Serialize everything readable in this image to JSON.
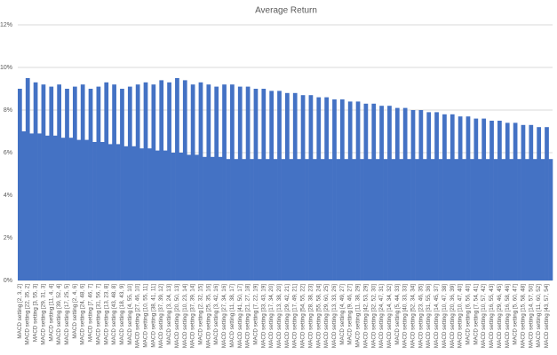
{
  "chart_data": {
    "type": "bar",
    "title": "Average Return",
    "categories": [
      "MACD setting [2, 3, 2]",
      null,
      "MACD setting [22, 35, 2]",
      null,
      "MACD setting [3, 55, 3]",
      null,
      "MACD setting [29, 31, 3]",
      null,
      "MACD setting [11, 4, 4]",
      null,
      "MACD setting [39, 52, 4]",
      null,
      "MACD setting [17, 25, 5]",
      null,
      "MACD setting [2, 4, 6]",
      null,
      "MACD setting [24, 48, 6]",
      null,
      "MACD setting [7, 46, 7]",
      null,
      "MACD setting [31, 56, 7]",
      null,
      "MACD setting [13, 23, 8]",
      null,
      "MACD setting [43, 48, 8]",
      null,
      "MACD setting [18, 43, 9]",
      null,
      "MACD setting [4, 55, 10]",
      null,
      "MACD setting [27, 46, 10]",
      null,
      "MACD setting [10, 55, 11]",
      null,
      "MACD setting [38, 41, 11]",
      null,
      "MACD setting [37, 39, 12]",
      null,
      "MACD setting [3, 24, 13]",
      null,
      "MACD setting [20, 50, 13]",
      null,
      "MACD setting [10, 23, 14]",
      null,
      "MACD setting [37, 39, 14]",
      null,
      "MACD setting [2, 32, 15]",
      null,
      "MACD setting [25, 35, 16]",
      null,
      "MACD setting [3, 42, 16]",
      null,
      "MACD setting [27, 34, 16]",
      null,
      "MACD setting [11, 38, 17]",
      null,
      "MACD setting [41, 50, 17]",
      null,
      "MACD setting [21, 27, 18]",
      null,
      "MACD setting [7, 22, 19]",
      null,
      "MACD setting [33, 43, 19]",
      null,
      "MACD setting [17, 34, 20]",
      null,
      "MACD setting [13, 38, 20]",
      null,
      "MACD setting [29, 42, 21]",
      null,
      "MACD setting [17, 49, 21]",
      null,
      "MACD setting [54, 55, 22]",
      null,
      "MACD setting [28, 38, 23]",
      null,
      "MACD setting [55, 58, 24]",
      null,
      "MACD setting [29, 60, 25]",
      null,
      "MACD setting [13, 33, 26]",
      null,
      "MACD setting [4, 49, 27]",
      null,
      "MACD setting [9, 46, 27]",
      null,
      "MACD setting [11, 38, 29]",
      null,
      "MACD setting [42, 53, 29]",
      null,
      "MACD setting [32, 52, 30]",
      null,
      "MACD setting [24, 47, 31]",
      null,
      "MACD setting [14, 34, 32]",
      null,
      "MACD setting [5, 44, 33]",
      null,
      "MACD setting [40, 33, 33]",
      null,
      "MACD setting [52, 34, 34]",
      null,
      "MACD setting [23, 46, 35]",
      null,
      "MACD setting [31, 55, 36]",
      null,
      "MACD setting [14, 45, 37]",
      null,
      "MACD setting [10, 47, 38]",
      null,
      "MACD setting [20, 36, 39]",
      null,
      "MACD setting [10, 47, 40]",
      null,
      "MACD setting [6, 56, 40]",
      null,
      "MACD setting [7, 54, 41]",
      null,
      "MACD setting [10, 57, 42]",
      null,
      "MACD setting [16, 55, 43]",
      null,
      "MACD setting [29, 46, 45]",
      null,
      "MACD setting [16, 58, 46]",
      null,
      "MACD setting [5, 60, 47]",
      null,
      "MACD setting [15, 58, 48]",
      null,
      "MACD setting [14, 57, 50]",
      null,
      "MACD setting [11, 60, 52]",
      null,
      "MACD setting [43, 57, 54]",
      null
    ],
    "values": [
      9.0,
      7.0,
      9.5,
      6.9,
      9.3,
      6.9,
      9.2,
      6.8,
      9.1,
      6.8,
      9.2,
      6.7,
      9.0,
      6.7,
      9.1,
      6.6,
      9.2,
      6.6,
      9.0,
      6.5,
      9.1,
      6.5,
      9.3,
      6.4,
      9.2,
      6.4,
      9.0,
      6.3,
      9.1,
      6.3,
      9.2,
      6.2,
      9.3,
      6.2,
      9.2,
      6.1,
      9.4,
      6.1,
      9.3,
      6.0,
      9.5,
      6.0,
      9.4,
      5.9,
      9.2,
      5.9,
      9.3,
      5.8,
      9.2,
      5.8,
      9.1,
      5.8,
      9.2,
      5.7,
      9.2,
      5.7,
      9.1,
      5.7,
      9.1,
      5.7,
      9.0,
      5.7,
      9.0,
      5.7,
      8.9,
      5.7,
      8.9,
      5.7,
      8.8,
      5.7,
      8.8,
      5.7,
      8.7,
      5.7,
      8.7,
      5.7,
      8.6,
      5.7,
      8.6,
      5.7,
      8.5,
      5.7,
      8.5,
      5.7,
      8.4,
      5.7,
      8.4,
      5.7,
      8.3,
      5.7,
      8.3,
      5.7,
      8.2,
      5.7,
      8.2,
      5.7,
      8.1,
      5.7,
      8.1,
      5.7,
      8.0,
      5.7,
      8.0,
      5.7,
      7.9,
      5.7,
      7.9,
      5.7,
      7.8,
      5.7,
      7.8,
      5.7,
      7.7,
      5.7,
      7.7,
      5.7,
      7.6,
      5.7,
      7.6,
      5.7,
      7.5,
      5.7,
      7.5,
      5.7,
      7.4,
      5.7,
      7.4,
      5.7,
      7.3,
      5.7,
      7.3,
      5.7,
      7.2,
      5.7,
      7.2,
      5.7
    ],
    "color": "#4472c4",
    "ylim": [
      0,
      12
    ],
    "yticks": [
      {
        "value": 0,
        "label": "0%"
      },
      {
        "value": 2,
        "label": "2%"
      },
      {
        "value": 4,
        "label": "4%"
      },
      {
        "value": 6,
        "label": "6%"
      },
      {
        "value": 8,
        "label": "8%"
      },
      {
        "value": 10,
        "label": "10%"
      },
      {
        "value": 12,
        "label": "12%"
      }
    ],
    "grid": true
  }
}
